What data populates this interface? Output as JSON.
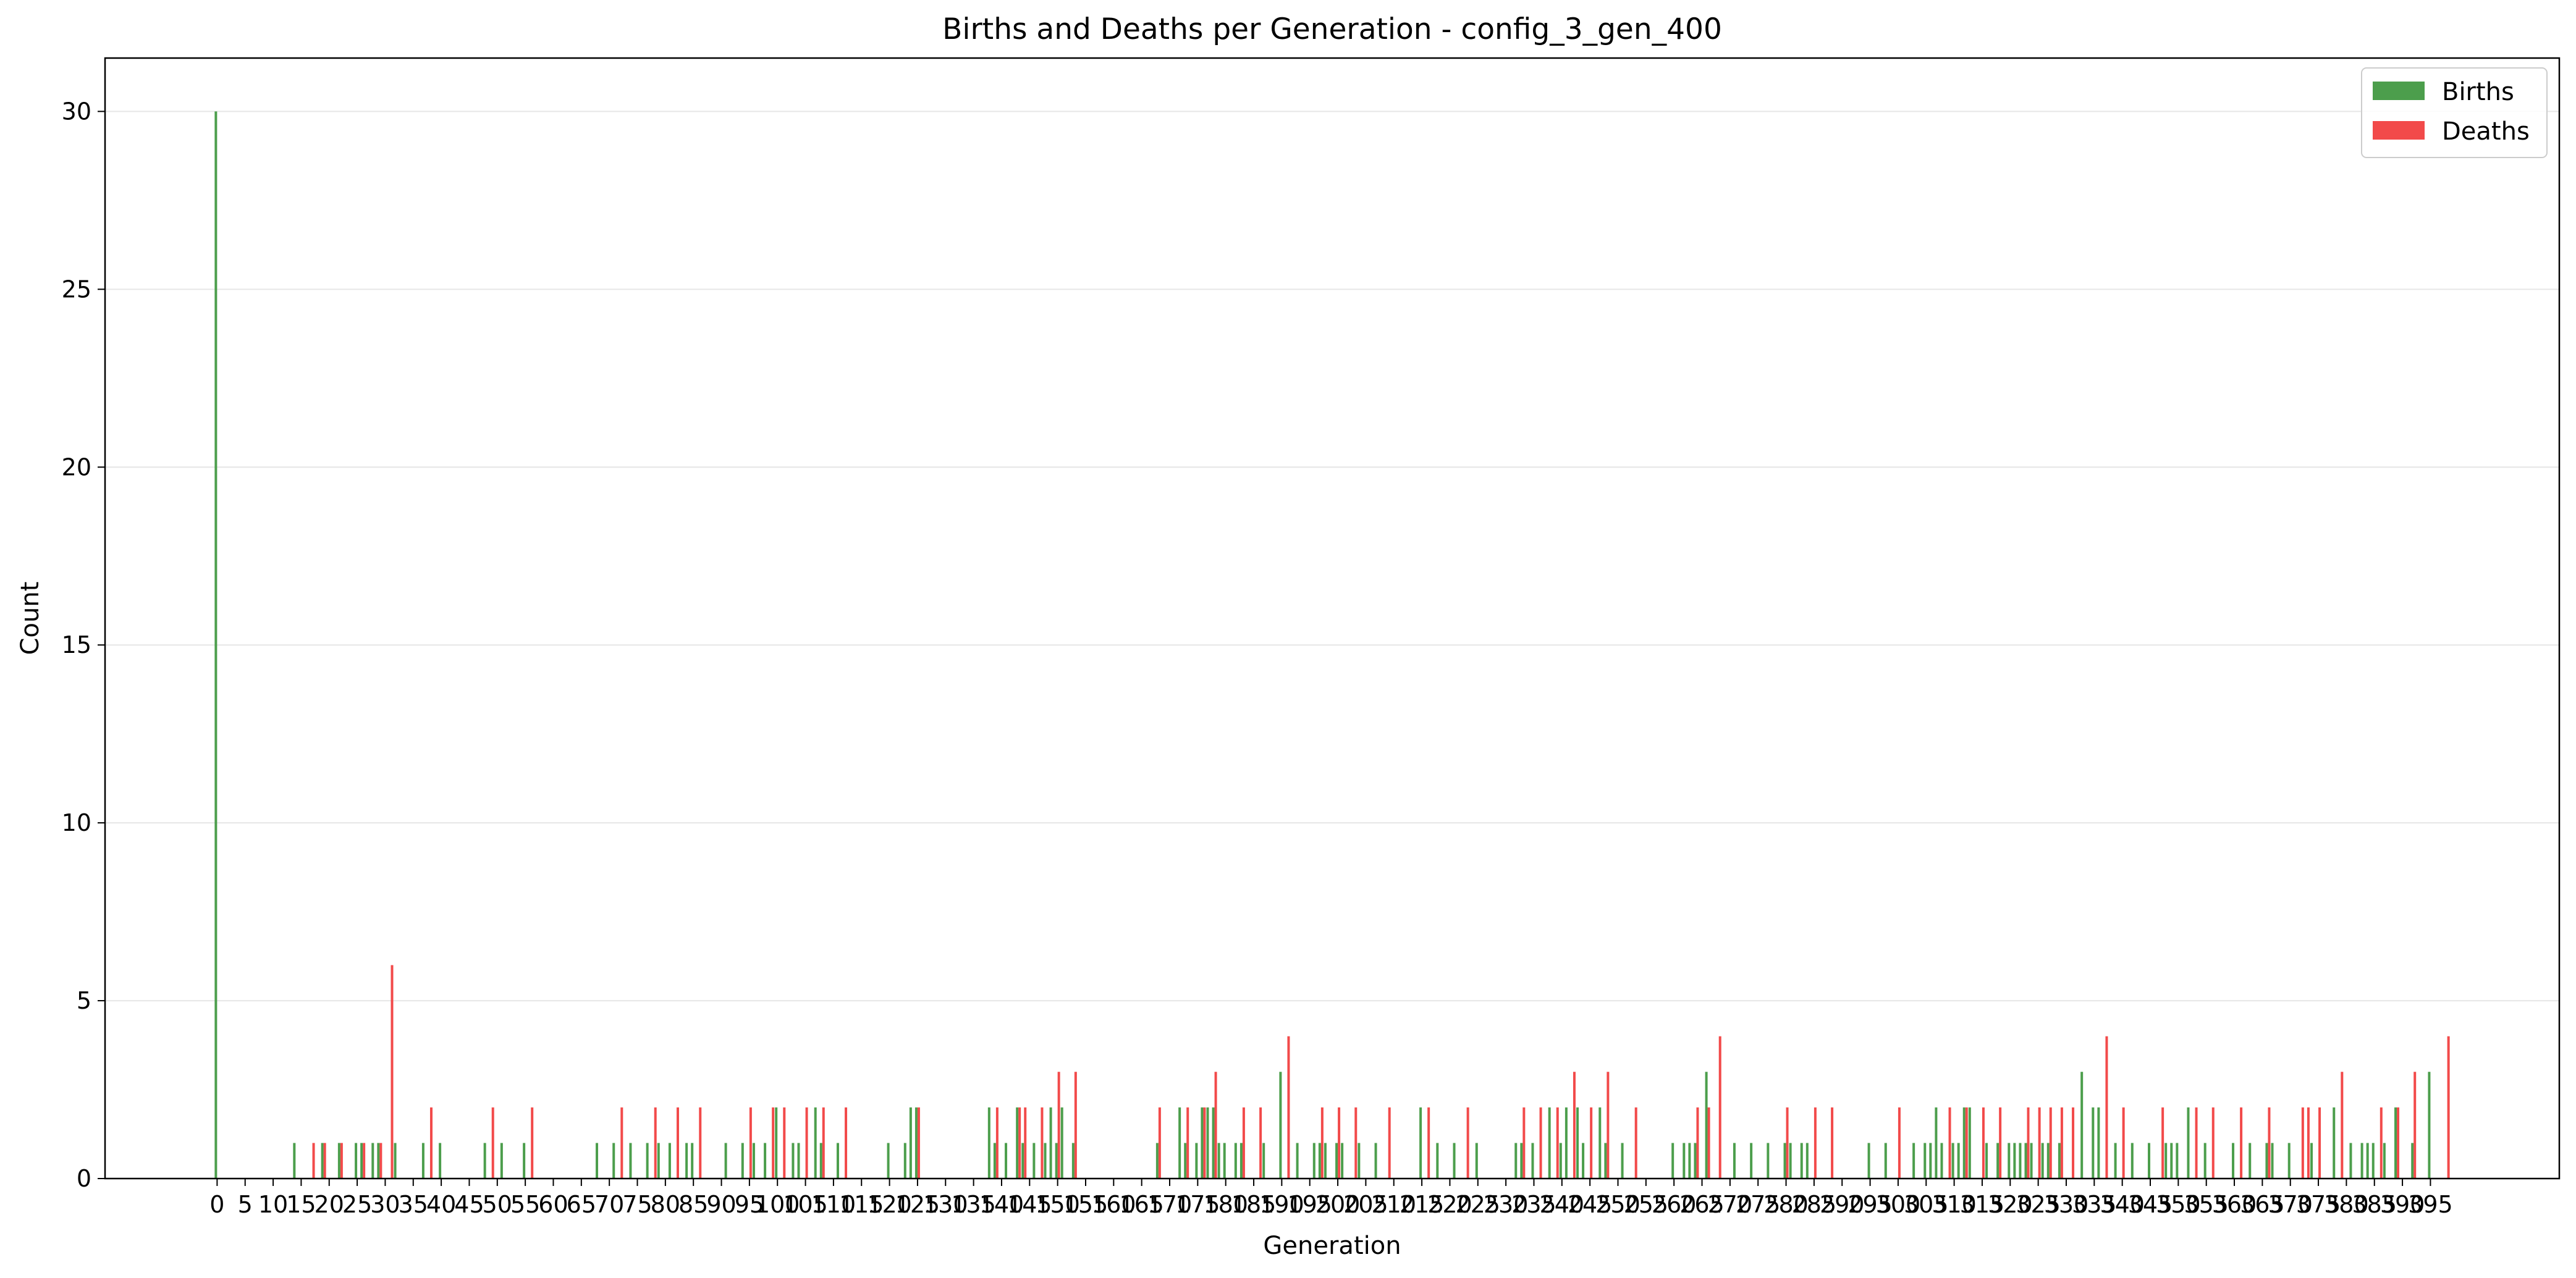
{
  "chart_data": {
    "type": "bar",
    "title": "Births and Deaths per Generation - config_3_gen_400",
    "xlabel": "Generation",
    "ylabel": "Count",
    "xlim": [
      -20,
      418
    ],
    "ylim": [
      0,
      31.5
    ],
    "grid": "y",
    "legend_position": "top-right",
    "colors": {
      "Births": "#4c9e4c",
      "Deaths": "#f24a4a"
    },
    "x_ticks": [
      0,
      5,
      10,
      15,
      20,
      25,
      30,
      35,
      40,
      45,
      50,
      55,
      60,
      65,
      70,
      75,
      80,
      85,
      90,
      95,
      100,
      105,
      110,
      115,
      120,
      125,
      130,
      135,
      140,
      145,
      150,
      155,
      160,
      165,
      170,
      175,
      180,
      185,
      190,
      195,
      200,
      205,
      210,
      215,
      220,
      225,
      230,
      235,
      240,
      245,
      250,
      255,
      260,
      265,
      270,
      275,
      280,
      285,
      290,
      295,
      300,
      305,
      310,
      315,
      320,
      325,
      330,
      335,
      340,
      345,
      350,
      355,
      360,
      365,
      370,
      375,
      380,
      385,
      390,
      395
    ],
    "y_ticks": [
      0,
      5,
      10,
      15,
      20,
      25,
      30
    ],
    "series": [
      {
        "name": "Births",
        "points": [
          [
            0,
            30
          ],
          [
            14,
            1
          ],
          [
            19,
            1
          ],
          [
            22,
            1
          ],
          [
            25,
            1
          ],
          [
            26,
            1
          ],
          [
            28,
            1
          ],
          [
            29,
            1
          ],
          [
            32,
            1
          ],
          [
            37,
            1
          ],
          [
            40,
            1
          ],
          [
            48,
            1
          ],
          [
            51,
            1
          ],
          [
            55,
            1
          ],
          [
            68,
            1
          ],
          [
            71,
            1
          ],
          [
            74,
            1
          ],
          [
            77,
            1
          ],
          [
            79,
            1
          ],
          [
            81,
            1
          ],
          [
            84,
            1
          ],
          [
            85,
            1
          ],
          [
            91,
            1
          ],
          [
            94,
            1
          ],
          [
            96,
            1
          ],
          [
            98,
            1
          ],
          [
            100,
            2
          ],
          [
            103,
            1
          ],
          [
            104,
            1
          ],
          [
            107,
            2
          ],
          [
            108,
            1
          ],
          [
            111,
            1
          ],
          [
            120,
            1
          ],
          [
            123,
            1
          ],
          [
            124,
            2
          ],
          [
            125,
            2
          ],
          [
            138,
            2
          ],
          [
            139,
            1
          ],
          [
            141,
            1
          ],
          [
            143,
            2
          ],
          [
            144,
            1
          ],
          [
            146,
            1
          ],
          [
            148,
            1
          ],
          [
            149,
            2
          ],
          [
            150,
            1
          ],
          [
            151,
            2
          ],
          [
            153,
            1
          ],
          [
            168,
            1
          ],
          [
            172,
            2
          ],
          [
            173,
            1
          ],
          [
            175,
            1
          ],
          [
            176,
            2
          ],
          [
            177,
            2
          ],
          [
            178,
            2
          ],
          [
            179,
            1
          ],
          [
            180,
            1
          ],
          [
            182,
            1
          ],
          [
            183,
            1
          ],
          [
            187,
            1
          ],
          [
            190,
            3
          ],
          [
            193,
            1
          ],
          [
            196,
            1
          ],
          [
            197,
            1
          ],
          [
            198,
            1
          ],
          [
            200,
            1
          ],
          [
            201,
            1
          ],
          [
            204,
            1
          ],
          [
            207,
            1
          ],
          [
            215,
            2
          ],
          [
            218,
            1
          ],
          [
            221,
            1
          ],
          [
            225,
            1
          ],
          [
            232,
            1
          ],
          [
            233,
            1
          ],
          [
            235,
            1
          ],
          [
            238,
            2
          ],
          [
            240,
            1
          ],
          [
            241,
            2
          ],
          [
            243,
            2
          ],
          [
            244,
            1
          ],
          [
            247,
            2
          ],
          [
            248,
            1
          ],
          [
            251,
            1
          ],
          [
            260,
            1
          ],
          [
            262,
            1
          ],
          [
            263,
            1
          ],
          [
            264,
            1
          ],
          [
            266,
            3
          ],
          [
            271,
            1
          ],
          [
            274,
            1
          ],
          [
            277,
            1
          ],
          [
            280,
            1
          ],
          [
            281,
            1
          ],
          [
            283,
            1
          ],
          [
            284,
            1
          ],
          [
            295,
            1
          ],
          [
            298,
            1
          ],
          [
            303,
            1
          ],
          [
            305,
            1
          ],
          [
            306,
            1
          ],
          [
            307,
            2
          ],
          [
            308,
            1
          ],
          [
            310,
            1
          ],
          [
            311,
            1
          ],
          [
            312,
            2
          ],
          [
            313,
            2
          ],
          [
            316,
            1
          ],
          [
            318,
            1
          ],
          [
            320,
            1
          ],
          [
            321,
            1
          ],
          [
            322,
            1
          ],
          [
            323,
            1
          ],
          [
            324,
            1
          ],
          [
            326,
            1
          ],
          [
            327,
            1
          ],
          [
            329,
            1
          ],
          [
            333,
            3
          ],
          [
            335,
            2
          ],
          [
            336,
            2
          ],
          [
            339,
            1
          ],
          [
            342,
            1
          ],
          [
            345,
            1
          ],
          [
            348,
            1
          ],
          [
            349,
            1
          ],
          [
            350,
            1
          ],
          [
            352,
            2
          ],
          [
            355,
            1
          ],
          [
            360,
            1
          ],
          [
            363,
            1
          ],
          [
            366,
            1
          ],
          [
            367,
            1
          ],
          [
            370,
            1
          ],
          [
            374,
            1
          ],
          [
            378,
            2
          ],
          [
            381,
            1
          ],
          [
            383,
            1
          ],
          [
            384,
            1
          ],
          [
            385,
            1
          ],
          [
            387,
            1
          ],
          [
            389,
            2
          ],
          [
            392,
            1
          ],
          [
            395,
            3
          ]
        ]
      },
      {
        "name": "Deaths",
        "points": [
          [
            17,
            1
          ],
          [
            19,
            1
          ],
          [
            22,
            1
          ],
          [
            26,
            1
          ],
          [
            29,
            1
          ],
          [
            31,
            6
          ],
          [
            38,
            2
          ],
          [
            49,
            2
          ],
          [
            56,
            2
          ],
          [
            72,
            2
          ],
          [
            78,
            2
          ],
          [
            82,
            2
          ],
          [
            86,
            2
          ],
          [
            95,
            2
          ],
          [
            99,
            2
          ],
          [
            101,
            2
          ],
          [
            105,
            2
          ],
          [
            108,
            2
          ],
          [
            112,
            2
          ],
          [
            125,
            2
          ],
          [
            139,
            2
          ],
          [
            143,
            2
          ],
          [
            144,
            2
          ],
          [
            147,
            2
          ],
          [
            150,
            3
          ],
          [
            153,
            3
          ],
          [
            168,
            2
          ],
          [
            173,
            2
          ],
          [
            176,
            2
          ],
          [
            178,
            3
          ],
          [
            183,
            2
          ],
          [
            186,
            2
          ],
          [
            191,
            4
          ],
          [
            197,
            2
          ],
          [
            200,
            2
          ],
          [
            203,
            2
          ],
          [
            209,
            2
          ],
          [
            216,
            2
          ],
          [
            223,
            2
          ],
          [
            233,
            2
          ],
          [
            236,
            2
          ],
          [
            239,
            2
          ],
          [
            242,
            3
          ],
          [
            245,
            2
          ],
          [
            248,
            3
          ],
          [
            253,
            2
          ],
          [
            264,
            2
          ],
          [
            266,
            2
          ],
          [
            268,
            4
          ],
          [
            280,
            2
          ],
          [
            285,
            2
          ],
          [
            288,
            2
          ],
          [
            300,
            2
          ],
          [
            309,
            2
          ],
          [
            312,
            2
          ],
          [
            315,
            2
          ],
          [
            318,
            2
          ],
          [
            323,
            2
          ],
          [
            325,
            2
          ],
          [
            327,
            2
          ],
          [
            329,
            2
          ],
          [
            331,
            2
          ],
          [
            337,
            4
          ],
          [
            340,
            2
          ],
          [
            347,
            2
          ],
          [
            353,
            2
          ],
          [
            356,
            2
          ],
          [
            361,
            2
          ],
          [
            366,
            2
          ],
          [
            372,
            2
          ],
          [
            373,
            2
          ],
          [
            375,
            2
          ],
          [
            379,
            3
          ],
          [
            386,
            2
          ],
          [
            389,
            2
          ],
          [
            392,
            3
          ],
          [
            398,
            4
          ]
        ]
      }
    ]
  }
}
